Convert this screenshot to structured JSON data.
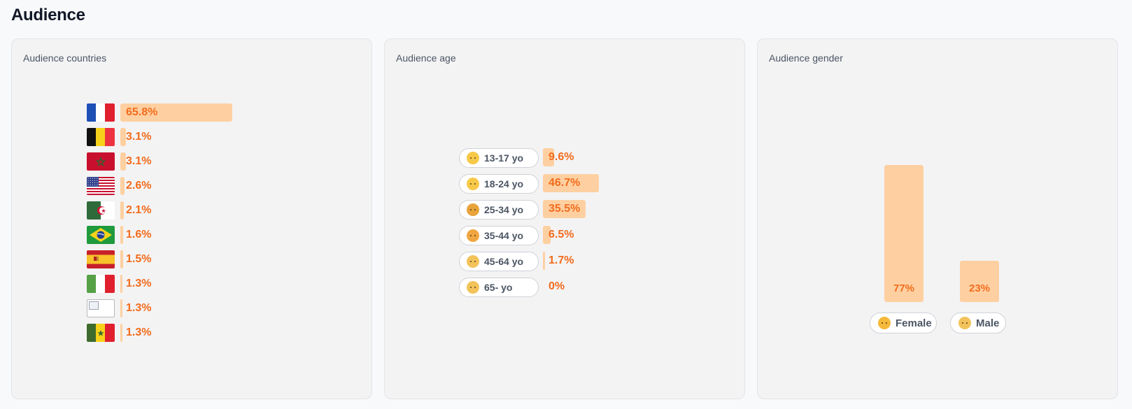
{
  "page": {
    "title": "Audience"
  },
  "countries": {
    "title": "Audience countries",
    "items": [
      {
        "flag": "france-flag-icon",
        "label": "65.8%",
        "value": 65.8
      },
      {
        "flag": "belgium-flag-icon",
        "label": "3.1%",
        "value": 3.1
      },
      {
        "flag": "morocco-flag-icon",
        "label": "3.1%",
        "value": 3.1
      },
      {
        "flag": "usa-flag-icon",
        "label": "2.6%",
        "value": 2.6
      },
      {
        "flag": "algeria-flag-icon",
        "label": "2.1%",
        "value": 2.1
      },
      {
        "flag": "brazil-flag-icon",
        "label": "1.6%",
        "value": 1.6
      },
      {
        "flag": "spain-flag-icon",
        "label": "1.5%",
        "value": 1.5
      },
      {
        "flag": "italy-flag-icon",
        "label": "1.3%",
        "value": 1.3
      },
      {
        "flag": "broken-image-icon",
        "label": "1.3%",
        "value": 1.3
      },
      {
        "flag": "senegal-flag-icon",
        "label": "1.3%",
        "value": 1.3
      }
    ]
  },
  "age": {
    "title": "Audience age",
    "items": [
      {
        "range": "13-17 yo",
        "emoji": "child-emoji-icon",
        "label": "9.6%",
        "value": 9.6
      },
      {
        "range": "18-24 yo",
        "emoji": "young-person-emoji-icon",
        "label": "46.7%",
        "value": 46.7
      },
      {
        "range": "25-34 yo",
        "emoji": "bearded-person-emoji-icon",
        "label": "35.5%",
        "value": 35.5
      },
      {
        "range": "35-44 yo",
        "emoji": "adult-emoji-icon",
        "label": "6.5%",
        "value": 6.5
      },
      {
        "range": "45-64 yo",
        "emoji": "older-adult-emoji-icon",
        "label": "1.7%",
        "value": 1.7
      },
      {
        "range": "65- yo",
        "emoji": "elder-emoji-icon",
        "label": "0%",
        "value": 0
      }
    ]
  },
  "gender": {
    "title": "Audience gender",
    "items": [
      {
        "name": "Female",
        "emoji": "woman-emoji-icon",
        "label": "77%",
        "value": 77
      },
      {
        "name": "Male",
        "emoji": "man-emoji-icon",
        "label": "23%",
        "value": 23
      }
    ]
  },
  "colors": {
    "bar": "#fed0a1",
    "value_text": "#f26c1d",
    "card_bg": "#f3f3f4"
  }
}
